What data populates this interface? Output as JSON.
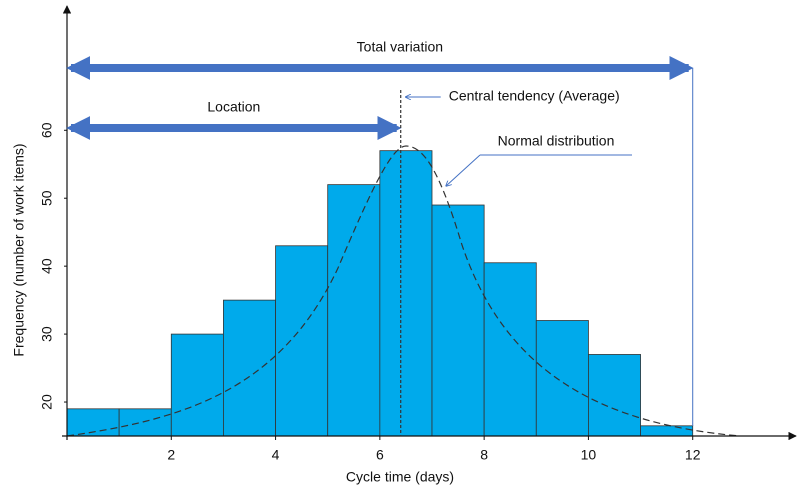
{
  "chart_data": {
    "type": "histogram",
    "x_label": "Cycle time (days)",
    "y_label": "Frequency (number of work items)",
    "bins": [
      0,
      1,
      2,
      3,
      4,
      5,
      6,
      7,
      8,
      9,
      10,
      11,
      12
    ],
    "values": [
      19,
      19,
      30,
      35,
      43,
      52,
      57,
      49,
      40.5,
      32,
      27,
      16.5
    ],
    "color": "#00aaeb",
    "xlim": [
      0,
      14
    ],
    "xticks": [
      2,
      4,
      6,
      8,
      10,
      12
    ],
    "ylim": [
      15,
      78
    ],
    "yticks": [
      20,
      30,
      40,
      50,
      60
    ],
    "annotations": [
      {
        "text": "Total variation",
        "x_start": 0,
        "x_end": 12
      },
      {
        "text": "Location",
        "x_start": 0,
        "x_end": 6.4
      },
      {
        "text": "Central tendency (Average)",
        "x": 6.4
      },
      {
        "text": "Normal distribution"
      }
    ]
  }
}
